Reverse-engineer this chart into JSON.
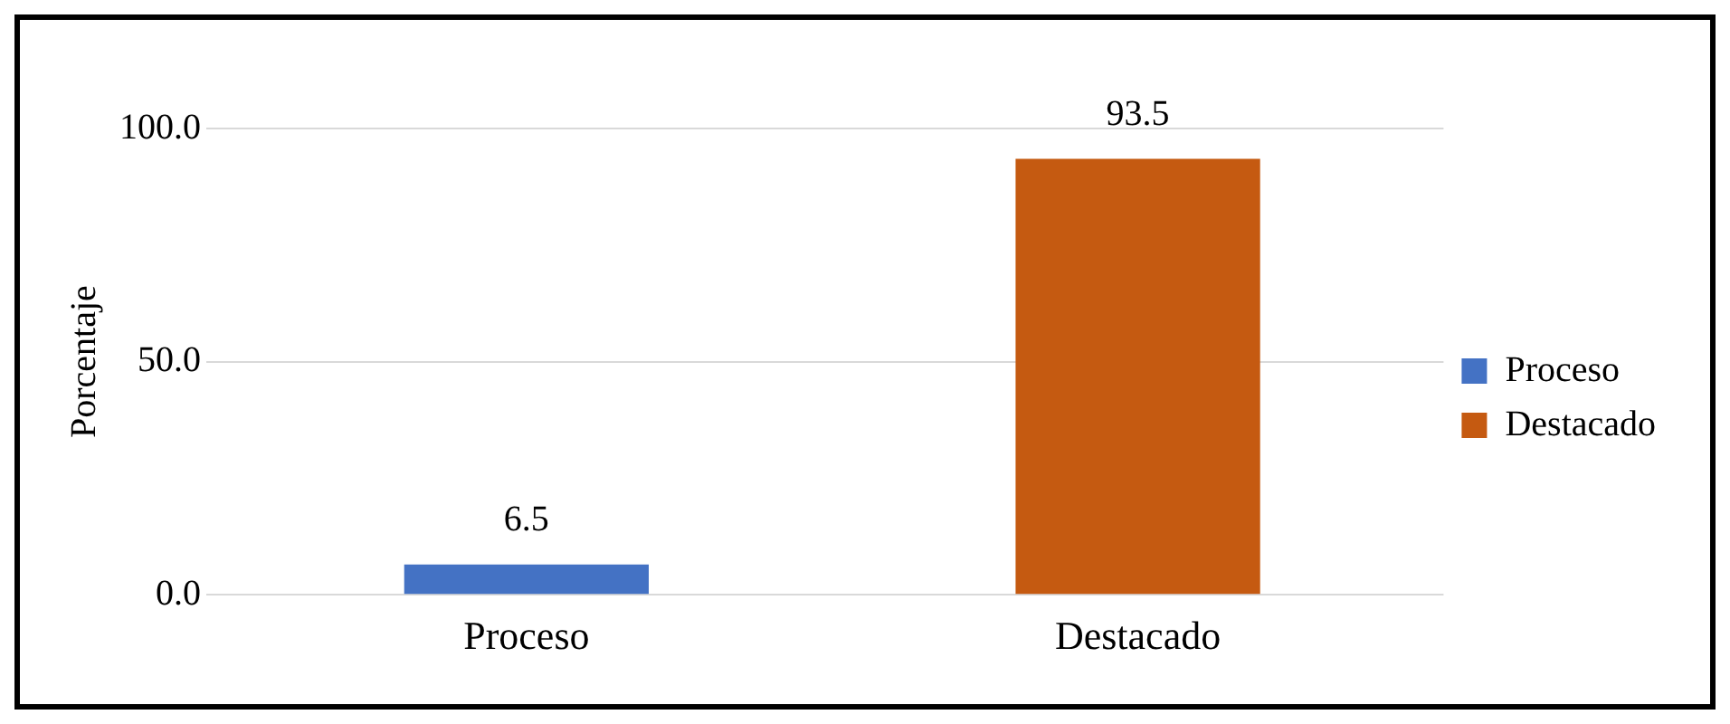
{
  "chart_data": {
    "type": "bar",
    "categories": [
      "Proceso",
      "Destacado"
    ],
    "series": [
      {
        "name": "Proceso",
        "color": "#4472c4",
        "values": [
          6.5,
          null
        ]
      },
      {
        "name": "Destacado",
        "color": "#c55a11",
        "values": [
          null,
          93.5
        ]
      }
    ],
    "ylabel": "Porcentaje",
    "ylim": [
      0,
      100
    ],
    "yticks": [
      {
        "value": 0,
        "label": "0.0"
      },
      {
        "value": 50,
        "label": "50.0"
      },
      {
        "value": 100,
        "label": "100.0"
      }
    ],
    "grid": "y",
    "legend": "right",
    "data_labels": true
  }
}
